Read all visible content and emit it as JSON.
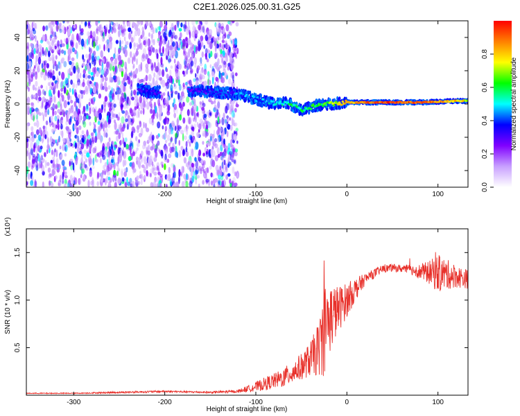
{
  "title": "C2E1.2026.025.00.31.G25",
  "chart_data": [
    {
      "type": "heatmap",
      "xlabel": "Height of straight line (km)",
      "ylabel": "Frequency (Hz)",
      "xlim": [
        -352,
        133
      ],
      "ylim": [
        -50,
        50
      ],
      "xticks": [
        -300,
        -200,
        -100,
        0,
        100
      ],
      "yticks": [
        -40,
        -20,
        0,
        20,
        40
      ],
      "colorbar": {
        "label": "Normalized spectral amplitude",
        "range": [
          0,
          1
        ],
        "ticks": [
          0.0,
          0.2,
          0.4,
          0.6,
          0.8
        ],
        "colors": [
          "#ffffff",
          "#c8a0ff",
          "#8000ff",
          "#0000ff",
          "#00ffff",
          "#00ff00",
          "#ffff00",
          "#ff8000",
          "#ff0000"
        ]
      },
      "noise_region": {
        "x": [
          -352,
          -120
        ],
        "y": [
          -50,
          50
        ],
        "amplitude": 0.25
      },
      "signal_ridge": [
        {
          "x": -230,
          "freq": 9,
          "amp": 0.35
        },
        {
          "x": -215,
          "freq": 7,
          "amp": 0.3
        },
        {
          "x": -165,
          "freq": 8,
          "amp": 0.3
        },
        {
          "x": -120,
          "freq": 6,
          "amp": 0.4
        },
        {
          "x": -100,
          "freq": 3,
          "amp": 0.45
        },
        {
          "x": -80,
          "freq": 0,
          "amp": 0.5
        },
        {
          "x": -65,
          "freq": 1,
          "amp": 0.55
        },
        {
          "x": -50,
          "freq": -4,
          "amp": 0.55
        },
        {
          "x": -35,
          "freq": -1,
          "amp": 0.6
        },
        {
          "x": -20,
          "freq": 0,
          "amp": 0.65
        },
        {
          "x": 0,
          "freq": 1,
          "amp": 0.8
        },
        {
          "x": 40,
          "freq": 1,
          "amp": 0.95
        },
        {
          "x": 80,
          "freq": 1,
          "amp": 0.9
        },
        {
          "x": 133,
          "freq": 2,
          "amp": 0.75
        }
      ]
    },
    {
      "type": "line",
      "xlabel": "Height of straight line (km)",
      "ylabel": "SNR (10 * v/v)",
      "yscale_label": "(x10⁴)",
      "xlim": [
        -352,
        133
      ],
      "ylim": [
        0,
        1.75
      ],
      "xticks": [
        -300,
        -200,
        -100,
        0,
        100
      ],
      "yticks": [
        0.5,
        1.0,
        1.5
      ],
      "color": "#e8302a",
      "series": [
        {
          "x": [
            -352,
            -300,
            -250,
            -200,
            -150,
            -120,
            -100,
            -90,
            -80,
            -70,
            -60,
            -50,
            -40,
            -30,
            -25,
            -20,
            -10,
            0,
            10,
            20,
            30,
            40,
            50,
            60,
            70,
            80,
            90,
            100,
            110,
            120,
            133
          ],
          "y": [
            0.02,
            0.02,
            0.03,
            0.04,
            0.03,
            0.04,
            0.09,
            0.12,
            0.15,
            0.18,
            0.24,
            0.3,
            0.38,
            0.5,
            0.7,
            0.8,
            0.9,
            1.0,
            1.12,
            1.22,
            1.28,
            1.33,
            1.34,
            1.33,
            1.32,
            1.3,
            1.29,
            1.28,
            1.27,
            1.25,
            1.22
          ],
          "noise": [
            0.005,
            0.005,
            0.01,
            0.01,
            0.01,
            0.015,
            0.05,
            0.07,
            0.08,
            0.1,
            0.12,
            0.14,
            0.18,
            0.3,
            0.5,
            0.4,
            0.25,
            0.18,
            0.12,
            0.06,
            0.05,
            0.04,
            0.04,
            0.04,
            0.05,
            0.08,
            0.12,
            0.2,
            0.16,
            0.12,
            0.1
          ]
        }
      ]
    }
  ]
}
